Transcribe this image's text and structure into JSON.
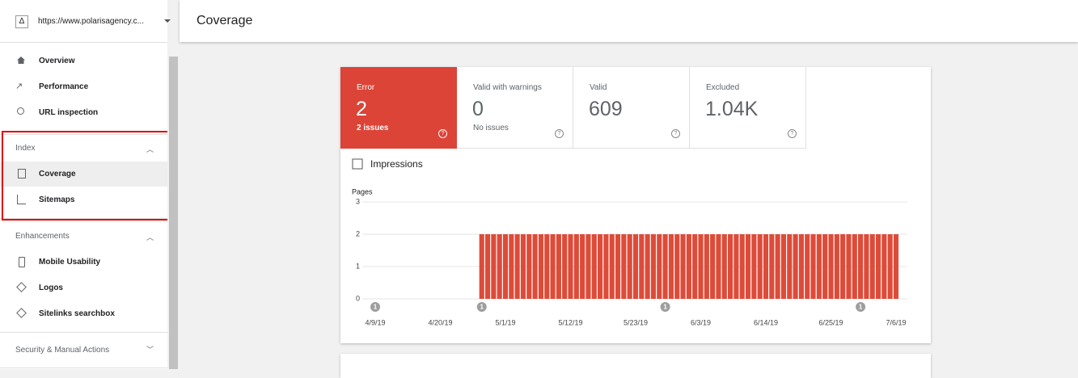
{
  "sidebar": {
    "property": "https://www.polarisagency.c...",
    "nav": [
      "Overview",
      "Performance",
      "URL inspection"
    ],
    "index": {
      "title": "Index",
      "items": [
        "Coverage",
        "Sitemaps"
      ]
    },
    "enhancements": {
      "title": "Enhancements",
      "items": [
        "Mobile Usability",
        "Logos",
        "Sitelinks searchbox"
      ]
    },
    "security": "Security & Manual Actions"
  },
  "header": {
    "title": "Coverage"
  },
  "summary": [
    {
      "label": "Error",
      "count": "2",
      "note": "2 issues"
    },
    {
      "label": "Valid with warnings",
      "count": "0",
      "note": "No issues"
    },
    {
      "label": "Valid",
      "count": "609"
    },
    {
      "label": "Excluded",
      "count": "1.04K"
    }
  ],
  "chart_data": {
    "type": "bar",
    "legend": "Impressions",
    "ylabel": "Pages",
    "color": "#dd4b39",
    "ylim": [
      0,
      3
    ],
    "yticks": [
      0,
      1,
      2,
      3
    ],
    "grid": true,
    "categories": [
      "4/9/19",
      null,
      null,
      null,
      null,
      null,
      null,
      null,
      null,
      null,
      null,
      "4/20/19",
      null,
      null,
      null,
      null,
      null,
      null,
      null,
      null,
      null,
      null,
      "5/1/19",
      null,
      null,
      null,
      null,
      null,
      null,
      null,
      null,
      null,
      null,
      "5/12/19",
      null,
      null,
      null,
      null,
      null,
      null,
      null,
      null,
      null,
      null,
      "5/23/19",
      null,
      null,
      null,
      null,
      null,
      null,
      null,
      null,
      null,
      null,
      "6/3/19",
      null,
      null,
      null,
      null,
      null,
      null,
      null,
      null,
      null,
      null,
      "6/14/19",
      null,
      null,
      null,
      null,
      null,
      null,
      null,
      null,
      null,
      null,
      "6/25/19",
      null,
      null,
      null,
      null,
      null,
      null,
      null,
      null,
      null,
      null,
      "7/6/19"
    ],
    "values": [
      0,
      0,
      0,
      0,
      0,
      0,
      0,
      0,
      0,
      0,
      0,
      0,
      0,
      0,
      0,
      0,
      0,
      0,
      2,
      2,
      2,
      2,
      2,
      2,
      2,
      2,
      2,
      2,
      2,
      2,
      2,
      2,
      2,
      2,
      2,
      2,
      2,
      2,
      2,
      2,
      2,
      2,
      2,
      2,
      2,
      2,
      2,
      2,
      2,
      2,
      2,
      2,
      2,
      2,
      2,
      2,
      2,
      2,
      2,
      2,
      2,
      2,
      2,
      2,
      2,
      2,
      2,
      2,
      2,
      2,
      2,
      2,
      2,
      2,
      2,
      2,
      2,
      2,
      2,
      2,
      2,
      2,
      2,
      2,
      2,
      2,
      2,
      2,
      2
    ],
    "annotations": [
      {
        "label": "1",
        "category_index": 0
      },
      {
        "label": "1",
        "category_index": 18
      },
      {
        "label": "1",
        "category_index": 49
      },
      {
        "label": "1",
        "category_index": 82
      }
    ]
  }
}
